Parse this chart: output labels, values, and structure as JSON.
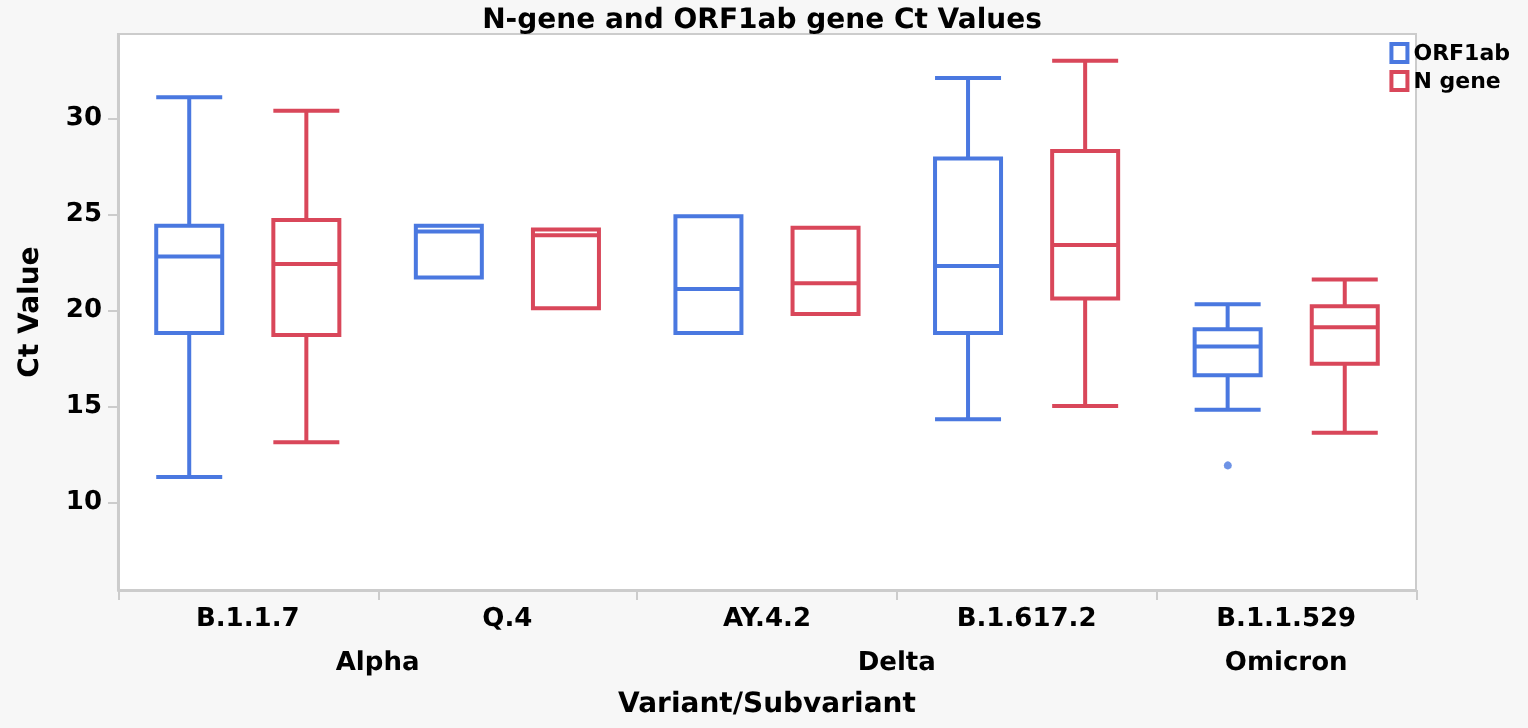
{
  "chart_data": {
    "type": "box",
    "title": "N-gene and ORF1ab gene Ct Values",
    "xlabel": "Variant/Subvariant",
    "ylabel": "Ct Value",
    "categories": [
      "B.1.1.7",
      "Q.4",
      "AY.4.2",
      "B.1.617.2",
      "B.1.1.529"
    ],
    "annotations": [
      "Alpha",
      "Delta",
      "Omicron"
    ],
    "series": [
      {
        "name": "ORF1ab",
        "color": "#4a78e0",
        "boxes": [
          {
            "low": 11.3,
            "q1": 18.8,
            "median": 22.8,
            "q3": 24.4,
            "high": 31.1
          },
          {
            "low": 21.7,
            "q1": 21.7,
            "median": 24.1,
            "q3": 24.4,
            "high": 24.4
          },
          {
            "low": 18.8,
            "q1": 18.8,
            "median": 21.1,
            "q3": 24.9,
            "high": 24.9
          },
          {
            "low": 14.3,
            "q1": 18.8,
            "median": 22.3,
            "q3": 27.9,
            "high": 32.1
          },
          {
            "low": 14.8,
            "q1": 16.6,
            "median": 18.1,
            "q3": 19.0,
            "high": 20.3,
            "outliers": [
              11.9
            ]
          }
        ]
      },
      {
        "name": "N gene",
        "color": "#d9475a",
        "boxes": [
          {
            "low": 13.1,
            "q1": 18.7,
            "median": 22.4,
            "q3": 24.7,
            "high": 30.4
          },
          {
            "low": 20.1,
            "q1": 20.1,
            "median": 23.9,
            "q3": 24.2,
            "high": 24.2
          },
          {
            "low": 19.8,
            "q1": 19.8,
            "median": 21.4,
            "q3": 24.3,
            "high": 24.3
          },
          {
            "low": 15.0,
            "q1": 20.6,
            "median": 23.4,
            "q3": 28.3,
            "high": 33.0
          },
          {
            "low": 13.6,
            "q1": 17.2,
            "median": 19.1,
            "q3": 20.2,
            "high": 21.6
          }
        ]
      }
    ],
    "ylim": [
      5.4,
      34.4
    ],
    "yticks": [
      10,
      15,
      20,
      25,
      30
    ],
    "grid": false,
    "legend": "top right"
  }
}
